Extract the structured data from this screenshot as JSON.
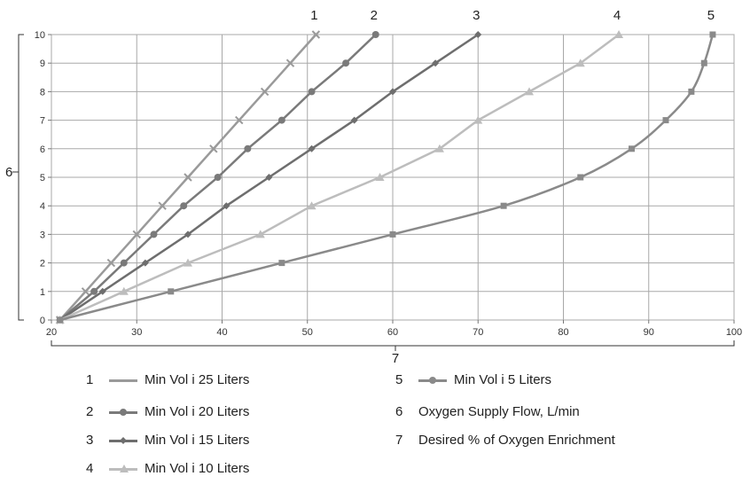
{
  "chart_data": {
    "type": "line",
    "xlabel_key": "7",
    "ylabel_key": "6",
    "xlim": [
      20,
      100
    ],
    "ylim": [
      0,
      10
    ],
    "xticks": [
      "20",
      "30",
      "40",
      "50",
      "60",
      "70",
      "80",
      "90",
      "100"
    ],
    "yticks": [
      "0",
      "1",
      "2",
      "3",
      "4",
      "5",
      "6",
      "7",
      "8",
      "9",
      "10"
    ],
    "grid": true,
    "series": [
      {
        "key": "1",
        "color": "#9a9a9a",
        "marker": "x",
        "x": [
          21,
          24,
          27,
          30,
          33,
          36,
          39,
          42,
          45,
          48,
          51
        ],
        "y": [
          0,
          1,
          2,
          3,
          4,
          5,
          6,
          7,
          8,
          9,
          10
        ]
      },
      {
        "key": "2",
        "color": "#7a7a7a",
        "marker": "circle",
        "x": [
          21,
          25,
          28.5,
          32,
          35.5,
          39.5,
          43,
          47,
          50.5,
          54.5,
          58
        ],
        "y": [
          0,
          1,
          2,
          3,
          4,
          5,
          6,
          7,
          8,
          9,
          10
        ]
      },
      {
        "key": "3",
        "color": "#6e6e6e",
        "marker": "diamond",
        "x": [
          21,
          26,
          31,
          36,
          40.5,
          45.5,
          50.5,
          55.5,
          60,
          65,
          70
        ],
        "y": [
          0,
          1,
          2,
          3,
          4,
          5,
          6,
          7,
          8,
          9,
          10
        ]
      },
      {
        "key": "4",
        "color": "#bdbdbd",
        "marker": "triangle",
        "x": [
          21,
          28.5,
          36,
          44.5,
          50.5,
          58.5,
          65.5,
          70,
          76,
          82,
          86.5
        ],
        "y": [
          0,
          1,
          2,
          3,
          4,
          5,
          6,
          7,
          8,
          9,
          10
        ]
      },
      {
        "key": "5",
        "color": "#8a8a8a",
        "marker": "square",
        "x": [
          21,
          34,
          47,
          60,
          73,
          82,
          88,
          92,
          95,
          96.5,
          97.5
        ],
        "y": [
          0,
          1,
          2,
          3,
          4,
          5,
          6,
          7,
          8,
          9,
          10
        ]
      }
    ]
  },
  "callouts": [
    "1",
    "2",
    "3",
    "4",
    "5"
  ],
  "legend": [
    {
      "num": "1",
      "label": "Min Vol i 25 Liters"
    },
    {
      "num": "2",
      "label": "Min Vol i 20 Liters"
    },
    {
      "num": "3",
      "label": "Min Vol i 15 Liters"
    },
    {
      "num": "4",
      "label": "Min Vol i 10 Liters"
    },
    {
      "num": "5",
      "label": "Min Vol i 5 Liters"
    },
    {
      "num": "6",
      "label": "Oxygen Supply Flow, L/min"
    },
    {
      "num": "7",
      "label": "Desired % of Oxygen Enrichment"
    }
  ]
}
